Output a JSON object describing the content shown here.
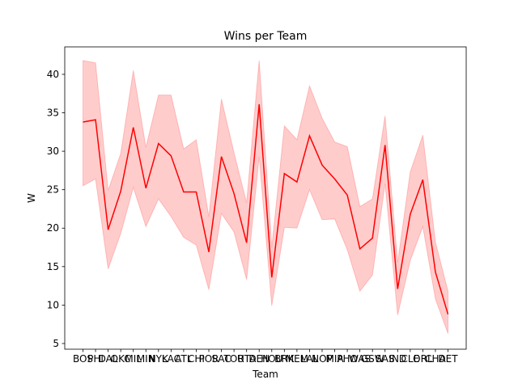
{
  "chart_data": {
    "type": "line",
    "title": "Wins per Team",
    "xlabel": "Team",
    "ylabel": "W",
    "categories": [
      "BOS",
      "PHI",
      "DAL",
      "OKC",
      "MIL",
      "MIN",
      "NYK",
      "LAC",
      "ATL",
      "CHI",
      "POR",
      "SAC",
      "TOR",
      "UTA",
      "DEN",
      "HOU",
      "BRK",
      "MEM",
      "LAL",
      "NOP",
      "MIA",
      "PHO",
      "WAS",
      "GSW",
      "SAS",
      "IND",
      "CLE",
      "ORL",
      "CHA",
      "DET"
    ],
    "series": [
      {
        "name": "W",
        "color": "#ff0000",
        "band_color": "#ff0000",
        "values": [
          33.8,
          34.1,
          19.8,
          24.8,
          33.1,
          25.2,
          31.0,
          29.4,
          24.7,
          24.7,
          16.9,
          29.3,
          24.5,
          18.1,
          36.1,
          13.6,
          27.1,
          26.0,
          32.0,
          28.2,
          26.4,
          24.3,
          17.3,
          18.7,
          30.8,
          12.1,
          21.8,
          26.3,
          14.3,
          8.8
        ],
        "upper": [
          41.8,
          41.5,
          24.9,
          29.7,
          40.5,
          30.5,
          37.3,
          37.3,
          30.3,
          31.5,
          21.5,
          36.8,
          29.8,
          23.3,
          41.8,
          17.5,
          33.3,
          31.5,
          38.5,
          34.3,
          31.2,
          30.6,
          22.8,
          23.8,
          34.6,
          15.5,
          27.3,
          32.1,
          18.2,
          11.8
        ],
        "lower": [
          25.5,
          26.4,
          14.7,
          19.3,
          25.3,
          20.2,
          23.8,
          21.5,
          18.8,
          17.8,
          12.0,
          21.9,
          19.5,
          13.3,
          29.3,
          9.9,
          20.1,
          20.0,
          25.0,
          21.1,
          21.2,
          17.2,
          11.8,
          13.9,
          25.8,
          8.7,
          15.8,
          20.2,
          10.8,
          6.3
        ]
      }
    ],
    "ylim": [
      4.26,
      43.57
    ],
    "yticks": [
      5,
      10,
      15,
      20,
      25,
      30,
      35,
      40
    ],
    "grid": false
  }
}
